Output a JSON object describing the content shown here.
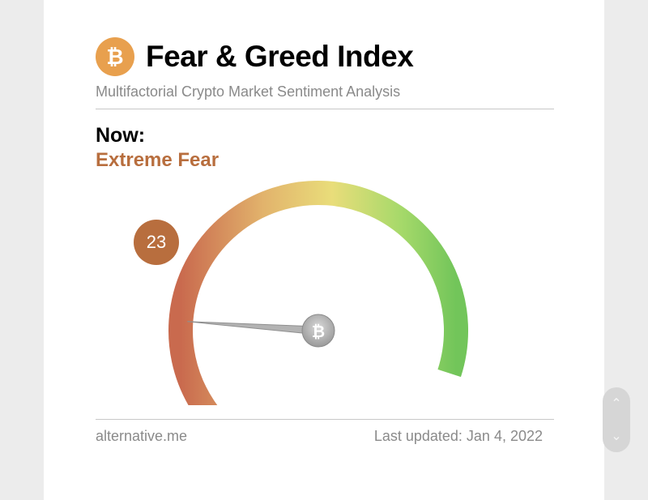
{
  "header": {
    "logo_glyph": "₿",
    "title": "Fear & Greed Index",
    "subtitle": "Multifactorial Crypto Market Sentiment Analysis"
  },
  "now": {
    "label": "Now:",
    "classification": "Extreme Fear",
    "value": "23",
    "value_color": "#b86e3e"
  },
  "gauge": {
    "min": 0,
    "max": 100,
    "value": 23,
    "colors": [
      "#c96a4e",
      "#e2b36c",
      "#e9dd7a",
      "#a6d96a",
      "#72c55a"
    ]
  },
  "footer": {
    "source": "alternative.me",
    "last_updated": "Last updated: Jan 4, 2022"
  },
  "scroll": {
    "up_icon": "⌃",
    "down_icon": "⌄"
  }
}
